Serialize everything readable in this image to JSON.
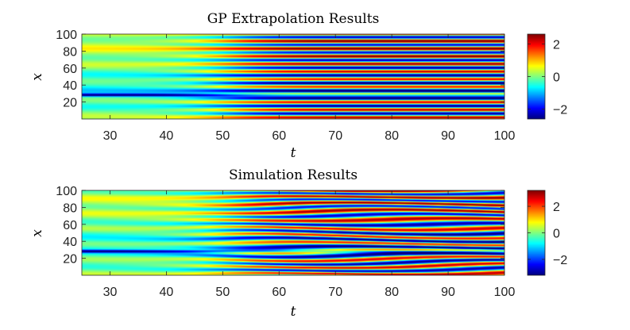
{
  "chart_data": [
    {
      "type": "heatmap",
      "title": "GP Extrapolation Results",
      "xlabel": "t",
      "ylabel": "x",
      "xlim": [
        25,
        100
      ],
      "ylim": [
        0,
        100
      ],
      "x_ticks": [
        30,
        40,
        50,
        60,
        70,
        80,
        90,
        100
      ],
      "y_ticks": [
        20,
        40,
        60,
        80,
        100
      ],
      "colorbar": {
        "range": [
          -2.6,
          2.6
        ],
        "ticks": [
          2,
          0,
          -2
        ],
        "colormap": "jet"
      },
      "pattern_regime": "stationary horizontal stripes"
    },
    {
      "type": "heatmap",
      "title": "Simulation Results",
      "xlabel": "t",
      "ylabel": "x",
      "xlim": [
        25,
        100
      ],
      "ylim": [
        0,
        100
      ],
      "x_ticks": [
        30,
        40,
        50,
        60,
        70,
        80,
        90,
        100
      ],
      "y_ticks": [
        20,
        40,
        60,
        80,
        100
      ],
      "colorbar": {
        "range": [
          -3.2,
          3.2
        ],
        "ticks": [
          2,
          0,
          -2
        ],
        "colormap": "jet"
      },
      "pattern_regime": "wavy chaotic stripes"
    }
  ]
}
